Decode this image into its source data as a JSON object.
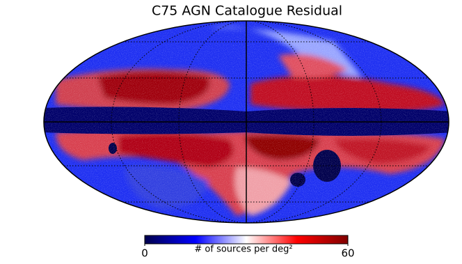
{
  "chart_data": {
    "type": "map",
    "title": "C75 AGN Catalogue Residual",
    "colorbar": {
      "label": "# of sources per deg²",
      "lim": [
        0,
        60
      ],
      "ticks": [
        0,
        60
      ],
      "colors": [
        "#00004c",
        "#0000ff",
        "#ffffff",
        "#ff0000",
        "#800000"
      ]
    }
  }
}
